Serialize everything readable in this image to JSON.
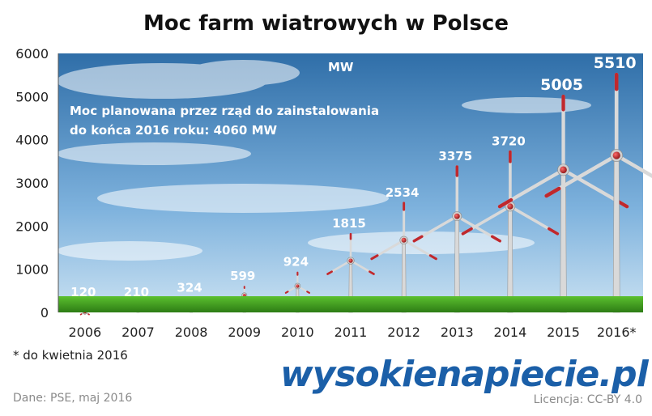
{
  "chart_data": {
    "type": "bar",
    "title": "Moc farm wiatrowych w Polsce",
    "unit_label": "MW",
    "annotation": "Moc planowana przez rząd do zainstalowania\ndo końca 2016 roku: 4060 MW",
    "categories": [
      "2006",
      "2007",
      "2008",
      "2009",
      "2010",
      "2011",
      "2012",
      "2013",
      "2014",
      "2015",
      "2016*"
    ],
    "values": [
      120,
      210,
      324,
      599,
      924,
      1815,
      2534,
      3375,
      3720,
      5005,
      5510
    ],
    "ylim": [
      0,
      6000
    ],
    "yticks": [
      0,
      1000,
      2000,
      3000,
      4000,
      5000,
      6000
    ],
    "grid": false,
    "bar_style": "wind-turbine pictogram",
    "colors": {
      "sky_top": "#2f6ea8",
      "sky_bottom": "#bcd8ee",
      "grass": "#3f9d1f",
      "turbine": "#d9d9d9",
      "blade_tip": "#c0282d",
      "hub": "#c0282d"
    }
  },
  "footnote": "* do kwietnia 2016",
  "source": "Dane: PSE,  maj 2016",
  "license": "Licencja: CC-BY 4.0",
  "logo": {
    "part1": "wysokie",
    "part2": "napiecie.pl"
  }
}
